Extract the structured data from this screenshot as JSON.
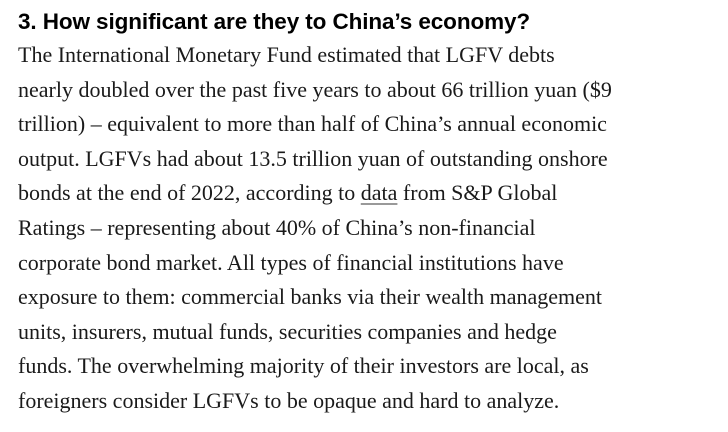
{
  "article": {
    "heading": "3. How significant are they to China’s economy?",
    "lines": [
      "The International Monetary Fund estimated that LGFV debts",
      "nearly doubled over the past five years to about 66 trillion yuan ($9",
      "trillion) – equivalent to more than half of China’s annual economic",
      "output. LGFVs had about 13.5 trillion yuan of outstanding onshore",
      "bonds at the end of 2022, according to ",
      "Ratings – representing about 40% of China’s non-financial",
      "corporate bond market. All types of financial institutions have",
      "exposure to them: commercial banks via their wealth management",
      "units, insurers, mutual funds, securities companies and hedge",
      "funds. The overwhelming majority of their investors are local, as",
      "foreigners consider LGFVs to be opaque and hard to analyze."
    ],
    "link_text": "data",
    "after_link": " from S&P Global"
  }
}
